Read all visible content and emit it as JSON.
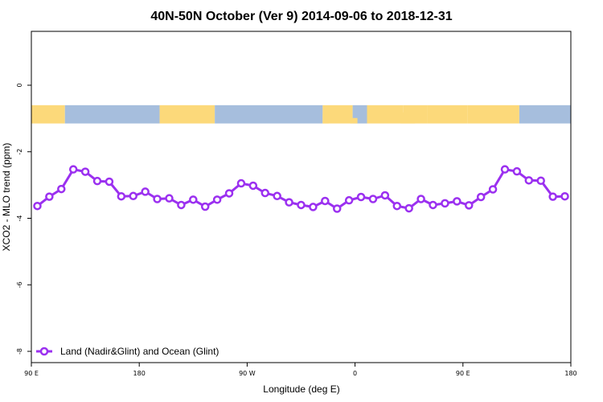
{
  "chart_data": {
    "type": "line",
    "title": "40N-50N October (Ver 9)   2014-09-06 to 2018-12-31",
    "xlabel": "Longitude (deg E)",
    "ylabel": "XCO2 - MLO trend (ppm)",
    "x_ticks": [
      {
        "value": 90,
        "label": "90 E"
      },
      {
        "value": 180,
        "label": "180"
      },
      {
        "value": 270,
        "label": "90 W"
      },
      {
        "value": 360,
        "label": "0"
      },
      {
        "value": 450,
        "label": "90 E"
      },
      {
        "value": 540,
        "label": "180"
      }
    ],
    "y_ticks": [
      0,
      -2,
      -4,
      -6,
      -8
    ],
    "xlim": [
      90,
      540
    ],
    "ylim": [
      -8.1,
      1.6
    ],
    "grid": false,
    "legend_position": "bottom-left",
    "colors": {
      "series": "#9b30f0",
      "land": "#fcd97a",
      "ocean": "#a6bedd"
    },
    "series": [
      {
        "name": "Land (Nadir&Glint) and Ocean (Glint)",
        "x": [
          95,
          105,
          115,
          125,
          135,
          145,
          155,
          165,
          175,
          185,
          195,
          205,
          215,
          225,
          235,
          245,
          255,
          265,
          275,
          285,
          295,
          305,
          315,
          325,
          335,
          345,
          355,
          365,
          375,
          385,
          395,
          405,
          415,
          425,
          435,
          445,
          455,
          465,
          475,
          485,
          495,
          505,
          515,
          525,
          535
        ],
        "y": [
          -3.63,
          -3.35,
          -3.12,
          -2.53,
          -2.6,
          -2.88,
          -2.9,
          -3.34,
          -3.33,
          -3.2,
          -3.42,
          -3.4,
          -3.6,
          -3.44,
          -3.65,
          -3.44,
          -3.25,
          -2.95,
          -3.02,
          -3.24,
          -3.33,
          -3.52,
          -3.6,
          -3.66,
          -3.48,
          -3.71,
          -3.46,
          -3.36,
          -3.42,
          -3.31,
          -3.63,
          -3.7,
          -3.42,
          -3.6,
          -3.55,
          -3.49,
          -3.61,
          -3.36,
          -3.13,
          -2.53,
          -2.59,
          -2.86,
          -2.87,
          -3.35,
          -3.34
        ]
      }
    ]
  },
  "map_strip": {
    "label": "land-ocean longitude strip",
    "y_range": [
      -0.6,
      -1.15
    ]
  }
}
